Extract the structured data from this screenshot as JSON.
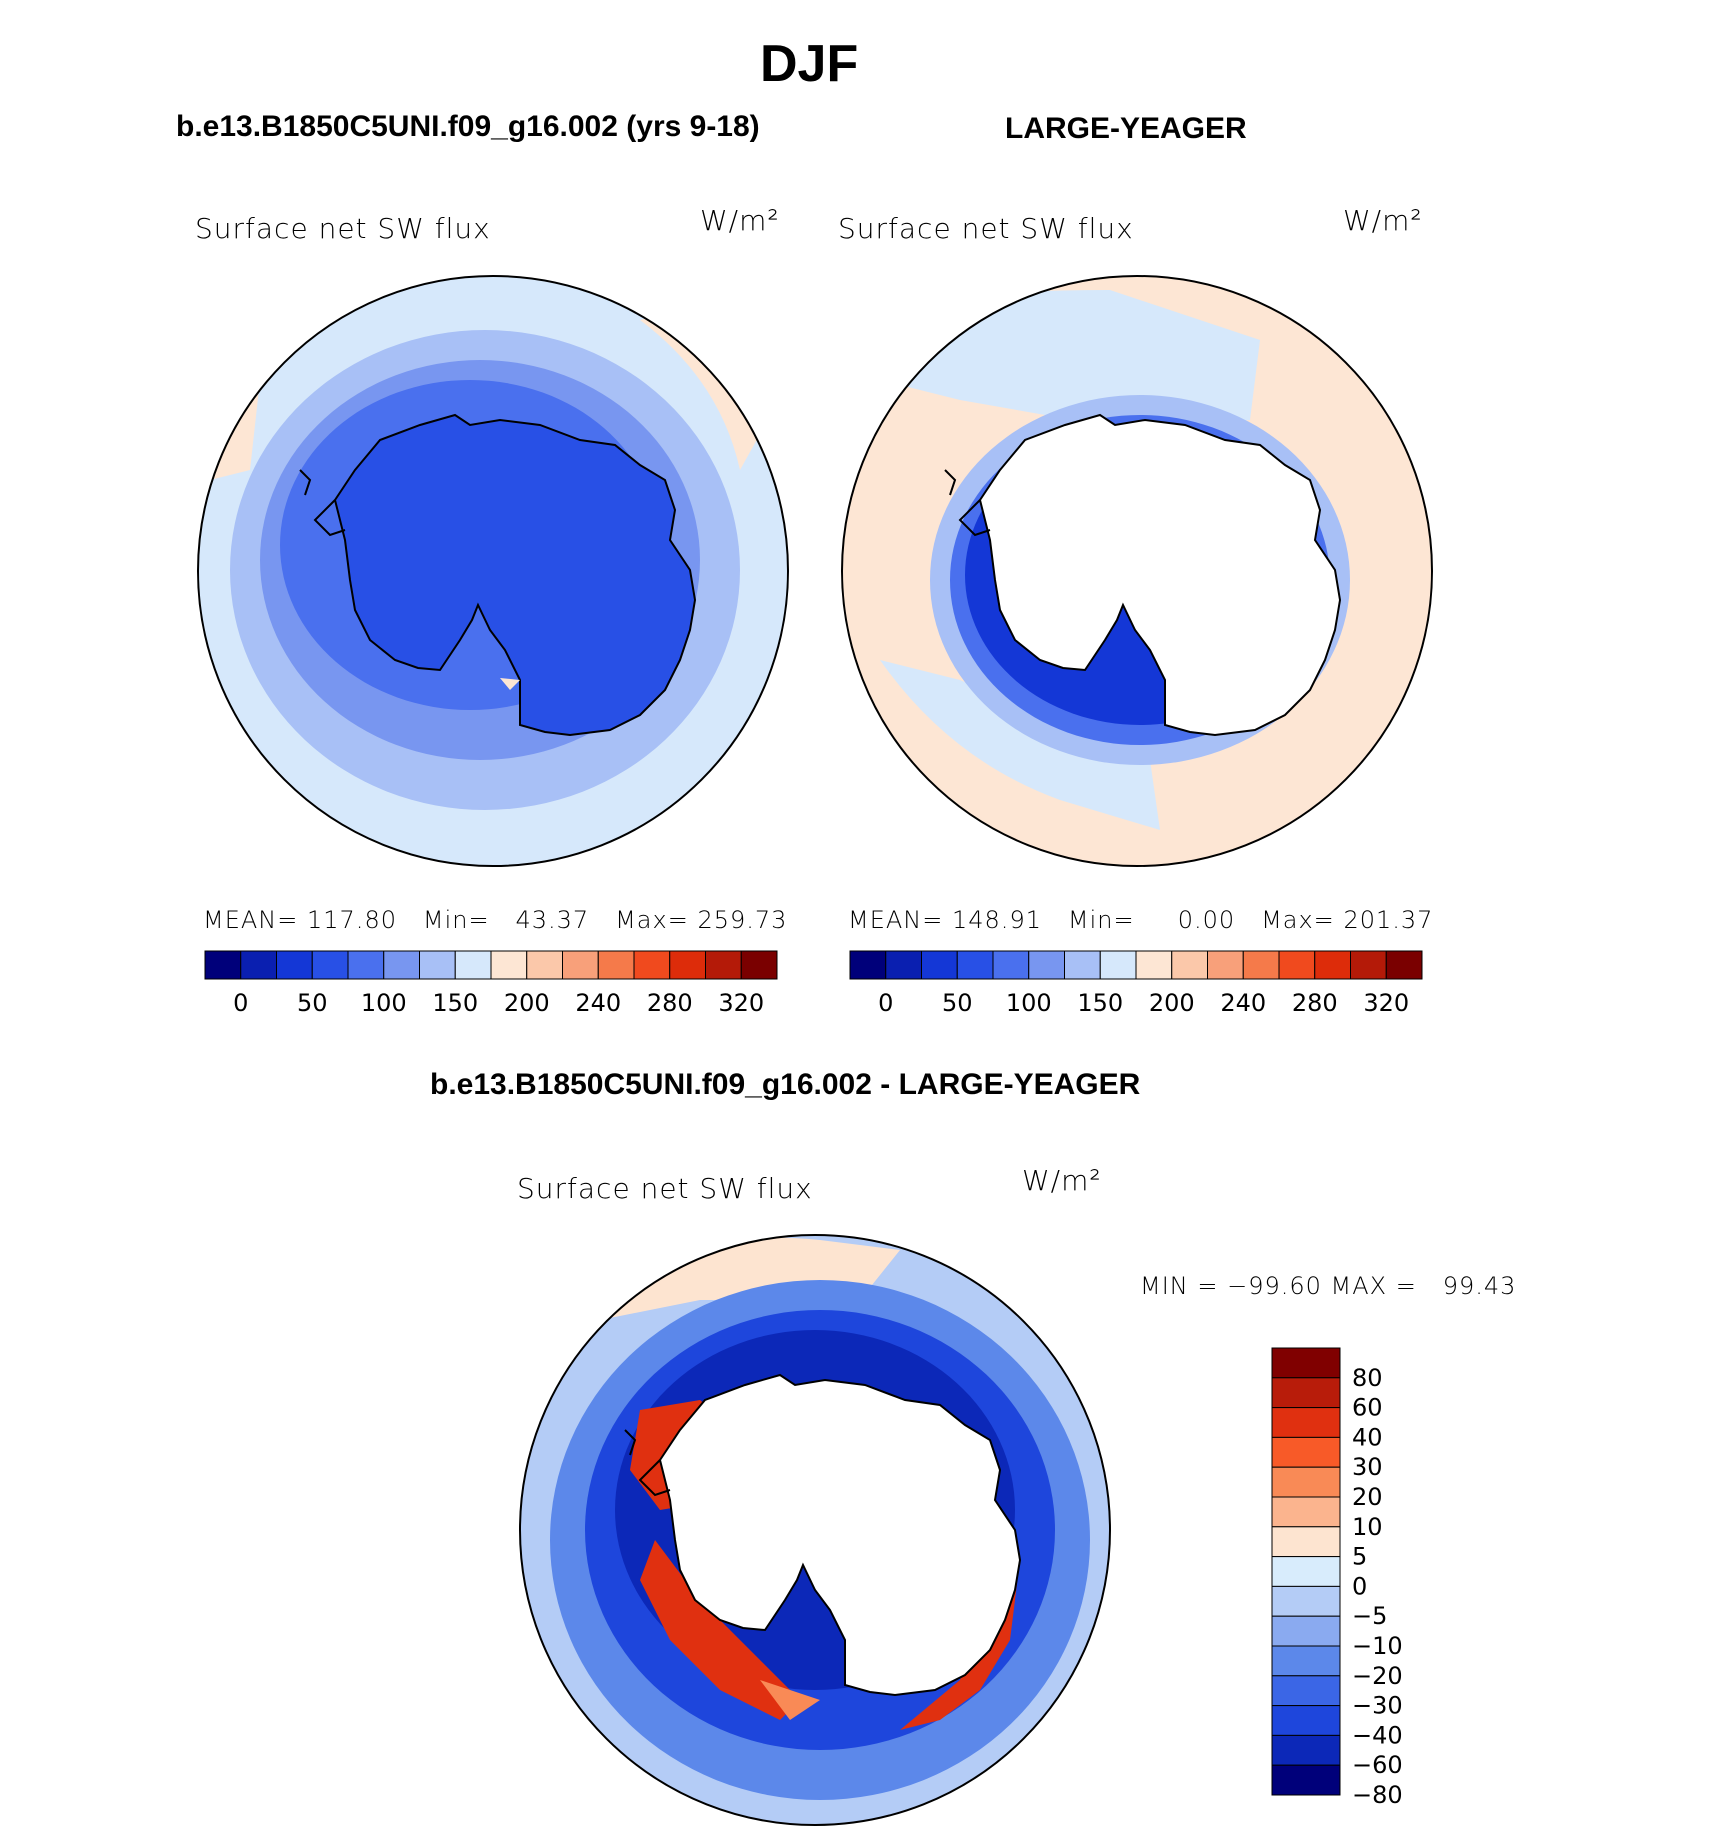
{
  "figure": {
    "season": "DJF",
    "case_label": "b.e13.B1850C5UNI.f09_g16.002 (yrs 9-18)",
    "obs_label": "LARGE-YEAGER",
    "diff_label": "b.e13.B1850C5UNI.f09_g16.002 - LARGE-YEAGER"
  },
  "panels": [
    {
      "variable": "Surface net SW flux",
      "units": "W/m²",
      "stats": {
        "mean_label": "MEAN=",
        "mean": "117.80",
        "min_label": "Min=",
        "min": "43.37",
        "max_label": "Max=",
        "max": "259.73"
      }
    },
    {
      "variable": "Surface net SW flux",
      "units": "W/m²",
      "stats": {
        "mean_label": "MEAN=",
        "mean": "148.91",
        "min_label": "Min=",
        "min": "0.00",
        "max_label": "Max=",
        "max": "201.37"
      }
    },
    {
      "variable": "Surface net SW flux",
      "units": "W/m²",
      "stats_text": "MIN = −99.60 MAX =   99.43"
    }
  ],
  "colorbar_abs": {
    "ticks": [
      "0",
      "50",
      "100",
      "150",
      "200",
      "240",
      "280",
      "320"
    ],
    "colors": [
      "#00007a",
      "#0a1fb0",
      "#1437d6",
      "#2850e6",
      "#4a70ee",
      "#7896f0",
      "#a8c0f6",
      "#d6e8fb",
      "#fde6d4",
      "#fbc8aa",
      "#f8a07a",
      "#f57a4a",
      "#f04a1e",
      "#dd2c0a",
      "#b41a08",
      "#7a0000"
    ]
  },
  "colorbar_diff": {
    "labels": [
      "80",
      "60",
      "40",
      "30",
      "20",
      "10",
      "5",
      "0",
      "−5",
      "−10",
      "−20",
      "−30",
      "−40",
      "−60",
      "−80"
    ],
    "colors": [
      "#800000",
      "#b81c0a",
      "#e03010",
      "#f85a28",
      "#f98a56",
      "#fbb48e",
      "#fde4d0",
      "#d8ecfc",
      "#b4ccf6",
      "#8aaaf0",
      "#5c88ea",
      "#3b66e6",
      "#1e46dc",
      "#0c28b8",
      "#00007a"
    ]
  },
  "map_colors": {
    "land_fill": "#ffffff",
    "coast": "#000000",
    "p1": {
      "outer": "#d6e8fb",
      "mid": "#a8c0f6",
      "inner": "#7896f0",
      "ice": "#4a70ee",
      "land": "#2850e6",
      "warm": "#fde6d4"
    },
    "p2": {
      "outer": "#fde6d4",
      "ring": "#d6e8fb",
      "ring2": "#a8c0f6",
      "edge": "#1437d6",
      "edge2": "#4a70ee"
    },
    "p3": {
      "outer": "#b4ccf6",
      "ring": "#5c88ea",
      "ring2": "#1e46dc",
      "deep": "#0c28b8",
      "red": "#e03010",
      "red2": "#f98a56",
      "warm": "#fde4d0"
    }
  }
}
